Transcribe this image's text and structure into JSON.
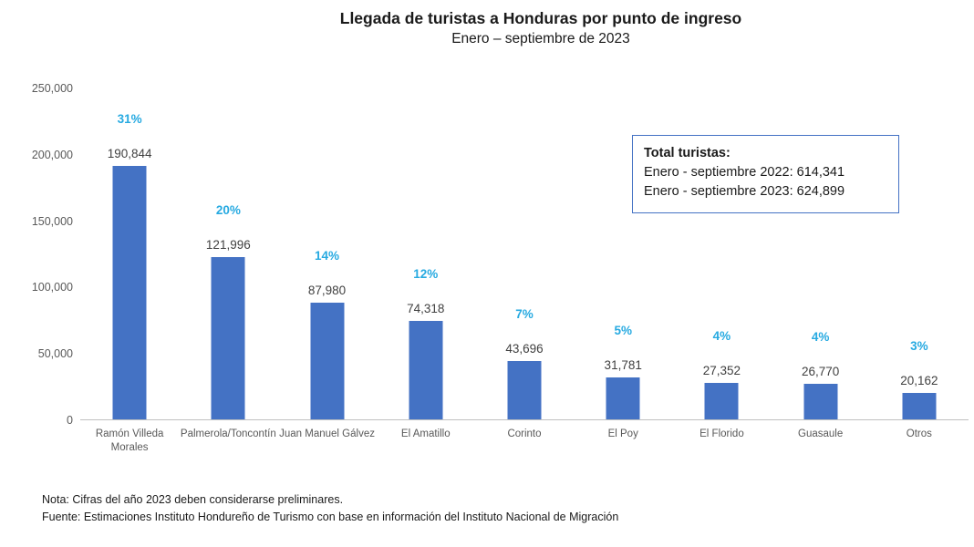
{
  "title": "Llegada de turistas a Honduras por punto de ingreso",
  "subtitle": "Enero – septiembre de 2023",
  "info_box": {
    "heading": "Total turistas:",
    "line1": "Enero - septiembre 2022: 614,341",
    "line2": "Enero - septiembre 2023: 624,899"
  },
  "notes": {
    "line1": "Nota: Cifras del año 2023 deben considerarse preliminares.",
    "line2": "Fuente: Estimaciones Instituto Hondureño de Turismo con base en información del Instituto Nacional de Migración"
  },
  "colors": {
    "bar": "#4472C4",
    "percent_label": "#27AAE1",
    "box_border": "#4472C4",
    "axis_line": "#BFBFBF"
  },
  "chart_data": {
    "type": "bar",
    "title": "Llegada de turistas a Honduras por punto de ingreso",
    "subtitle": "Enero – septiembre de 2023",
    "xlabel": "",
    "ylabel": "",
    "categories": [
      "Ramón Villeda Morales",
      "Palmerola/Toncontín",
      "Juan Manuel Gálvez",
      "El Amatillo",
      "Corinto",
      "El Poy",
      "El Florido",
      "Guasaule",
      "Otros"
    ],
    "category_labels": [
      "Ramón Villeda\nMorales",
      "Palmerola/Toncontín",
      "Juan Manuel Gálvez",
      "El Amatillo",
      "Corinto",
      "El Poy",
      "El Florido",
      "Guasaule",
      "Otros"
    ],
    "values": [
      190844,
      121996,
      87980,
      74318,
      43696,
      31781,
      27352,
      26770,
      20162
    ],
    "value_labels": [
      "190,844",
      "121,996",
      "87,980",
      "74,318",
      "43,696",
      "31,781",
      "27,352",
      "26,770",
      "20,162"
    ],
    "percent_labels": [
      "31%",
      "20%",
      "14%",
      "12%",
      "7%",
      "5%",
      "4%",
      "4%",
      "3%"
    ],
    "ylim": [
      0,
      250000
    ],
    "yticks": [
      0,
      50000,
      100000,
      150000,
      200000,
      250000
    ],
    "ytick_labels": [
      "0",
      "50,000",
      "100,000",
      "150,000",
      "200,000",
      "250,000"
    ],
    "grid": false,
    "legend": false
  }
}
